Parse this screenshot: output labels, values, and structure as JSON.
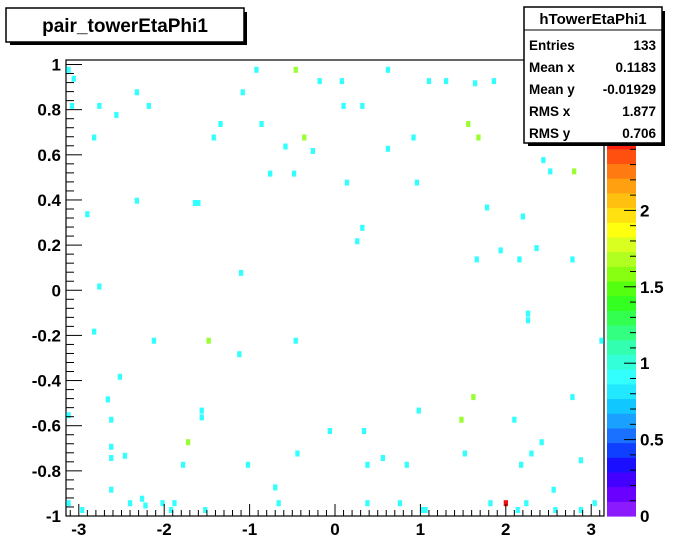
{
  "chart_data": {
    "type": "heatmap",
    "title": "pair_towerEtaPhi1",
    "xlabel": "",
    "ylabel": "",
    "xlim": [
      -3.15,
      3.15
    ],
    "ylim": [
      -1.0,
      1.02
    ],
    "zlim": [
      0,
      2.5
    ],
    "xticks": [
      -3,
      -2,
      -1,
      0,
      1,
      2,
      3
    ],
    "yticks": [
      -1,
      -0.8,
      -0.6,
      -0.4,
      -0.2,
      0,
      0.2,
      0.4,
      0.6,
      0.8,
      1
    ],
    "zticks": [
      0,
      0.5,
      1,
      1.5,
      2,
      2.5
    ],
    "bin_width": [
      0.05,
      0.02
    ],
    "colors": {
      "1": "#33ffff",
      "2": "#99ff33",
      "3": "#ee1111"
    },
    "palette": [
      "#8c1aff",
      "#6a00ff",
      "#4400ff",
      "#1a10ff",
      "#1040ff",
      "#1a70ff",
      "#1aa0ff",
      "#10c8ff",
      "#22e8ff",
      "#33ffff",
      "#33ffd8",
      "#33ffb0",
      "#33ff80",
      "#33ff50",
      "#33ff20",
      "#55ff10",
      "#88ff10",
      "#b0ff20",
      "#d8ff20",
      "#ffff10",
      "#ffe010",
      "#ffc010",
      "#ffa010",
      "#ff7a10",
      "#ff5010",
      "#ff2010"
    ],
    "points": [
      [
        -3.12,
        0.98,
        1
      ],
      [
        -3.06,
        0.94,
        1
      ],
      [
        -3.08,
        0.82,
        1
      ],
      [
        -3.12,
        -0.55,
        1
      ],
      [
        -3.12,
        -0.94,
        1
      ],
      [
        -2.96,
        -0.97,
        1
      ],
      [
        -2.9,
        0.34,
        1
      ],
      [
        -2.82,
        0.68,
        1
      ],
      [
        -2.82,
        -0.18,
        1
      ],
      [
        -2.76,
        0.02,
        1
      ],
      [
        -2.76,
        0.82,
        1
      ],
      [
        -2.66,
        -0.48,
        1
      ],
      [
        -2.62,
        -0.57,
        1
      ],
      [
        -2.62,
        -0.69,
        1
      ],
      [
        -2.62,
        -0.74,
        1
      ],
      [
        -2.62,
        -0.88,
        1
      ],
      [
        -2.56,
        0.78,
        1
      ],
      [
        -2.52,
        -0.38,
        1
      ],
      [
        -2.46,
        -0.73,
        1
      ],
      [
        -2.4,
        -0.94,
        1
      ],
      [
        -2.32,
        0.4,
        1
      ],
      [
        -2.32,
        0.88,
        1
      ],
      [
        -2.26,
        -0.92,
        1
      ],
      [
        -2.22,
        -0.95,
        1
      ],
      [
        -2.18,
        0.82,
        1
      ],
      [
        -2.12,
        -0.22,
        1
      ],
      [
        -2.02,
        -0.94,
        1
      ],
      [
        -1.92,
        -0.97,
        1
      ],
      [
        -1.88,
        -0.94,
        1
      ],
      [
        -1.78,
        -0.77,
        1
      ],
      [
        -1.72,
        -0.67,
        2
      ],
      [
        -1.64,
        0.39,
        1
      ],
      [
        -1.6,
        0.39,
        1
      ],
      [
        -1.56,
        -0.53,
        1
      ],
      [
        -1.56,
        -0.56,
        1
      ],
      [
        -1.52,
        -0.97,
        1
      ],
      [
        -1.48,
        -0.22,
        2
      ],
      [
        -1.42,
        0.68,
        1
      ],
      [
        -1.34,
        0.74,
        1
      ],
      [
        -1.12,
        -0.28,
        1
      ],
      [
        -1.1,
        0.08,
        1
      ],
      [
        -1.08,
        0.88,
        1
      ],
      [
        -1.02,
        -0.77,
        1
      ],
      [
        -0.92,
        0.98,
        1
      ],
      [
        -0.86,
        0.74,
        1
      ],
      [
        -0.76,
        0.52,
        1
      ],
      [
        -0.7,
        -0.87,
        1
      ],
      [
        -0.66,
        -0.94,
        1
      ],
      [
        -0.58,
        0.64,
        1
      ],
      [
        -0.46,
        0.98,
        2
      ],
      [
        -0.48,
        0.52,
        1
      ],
      [
        -0.46,
        -0.22,
        1
      ],
      [
        -0.44,
        -0.72,
        1
      ],
      [
        -0.36,
        0.68,
        2
      ],
      [
        -0.26,
        0.62,
        1
      ],
      [
        -0.18,
        0.93,
        1
      ],
      [
        -0.06,
        -0.62,
        1
      ],
      [
        0.08,
        0.93,
        1
      ],
      [
        0.1,
        0.82,
        1
      ],
      [
        0.14,
        0.48,
        1
      ],
      [
        0.26,
        0.22,
        1
      ],
      [
        0.32,
        0.82,
        1
      ],
      [
        0.34,
        -0.62,
        1
      ],
      [
        0.32,
        0.28,
        1
      ],
      [
        0.38,
        -0.77,
        1
      ],
      [
        0.38,
        -0.94,
        1
      ],
      [
        0.56,
        -0.74,
        1
      ],
      [
        0.62,
        0.98,
        1
      ],
      [
        0.62,
        0.63,
        1
      ],
      [
        0.76,
        -0.94,
        1
      ],
      [
        0.84,
        -0.77,
        1
      ],
      [
        0.92,
        0.68,
        1
      ],
      [
        0.96,
        0.48,
        1
      ],
      [
        0.98,
        -0.53,
        1
      ],
      [
        1.02,
        -0.97,
        1
      ],
      [
        1.06,
        -0.97,
        1
      ],
      [
        1.1,
        0.93,
        1
      ],
      [
        1.3,
        0.93,
        1
      ],
      [
        1.48,
        -0.57,
        2
      ],
      [
        1.52,
        -0.72,
        1
      ],
      [
        1.56,
        0.74,
        2
      ],
      [
        1.62,
        -0.47,
        2
      ],
      [
        1.64,
        0.92,
        1
      ],
      [
        1.68,
        0.68,
        2
      ],
      [
        1.66,
        0.14,
        1
      ],
      [
        1.78,
        0.37,
        1
      ],
      [
        1.82,
        -0.94,
        1
      ],
      [
        1.86,
        0.93,
        1
      ],
      [
        1.94,
        0.18,
        1
      ],
      [
        2,
        -0.94,
        3
      ],
      [
        2.1,
        -0.57,
        1
      ],
      [
        2.14,
        -0.97,
        1
      ],
      [
        2.16,
        0.14,
        1
      ],
      [
        2.18,
        -0.77,
        1
      ],
      [
        2.2,
        0.33,
        1
      ],
      [
        2.24,
        -0.94,
        1
      ],
      [
        2.26,
        -0.1,
        1
      ],
      [
        2.26,
        -0.13,
        1
      ],
      [
        2.3,
        -0.72,
        1
      ],
      [
        2.34,
        0.93,
        1
      ],
      [
        2.36,
        0.19,
        1
      ],
      [
        2.42,
        -0.67,
        1
      ],
      [
        2.44,
        0.58,
        1
      ],
      [
        2.52,
        0.53,
        1
      ],
      [
        2.56,
        -0.88,
        1
      ],
      [
        2.58,
        -0.97,
        1
      ],
      [
        2.62,
        0.93,
        1
      ],
      [
        2.78,
        0.14,
        1
      ],
      [
        2.78,
        -0.47,
        1
      ],
      [
        2.8,
        0.53,
        2
      ],
      [
        2.88,
        -0.97,
        1
      ],
      [
        2.88,
        -0.75,
        1
      ],
      [
        3.04,
        -0.94,
        1
      ],
      [
        3.12,
        -0.22,
        1
      ],
      [
        3.12,
        0.93,
        1
      ]
    ],
    "stats_box": {
      "title": "hTowerEtaPhi1",
      "rows": [
        {
          "label": "Entries",
          "value": "133"
        },
        {
          "label": "Mean x",
          "value": "0.1183"
        },
        {
          "label": "Mean y",
          "value": "-0.01929"
        },
        {
          "label": "RMS x",
          "value": "1.877"
        },
        {
          "label": "RMS y",
          "value": "0.706"
        }
      ]
    }
  }
}
